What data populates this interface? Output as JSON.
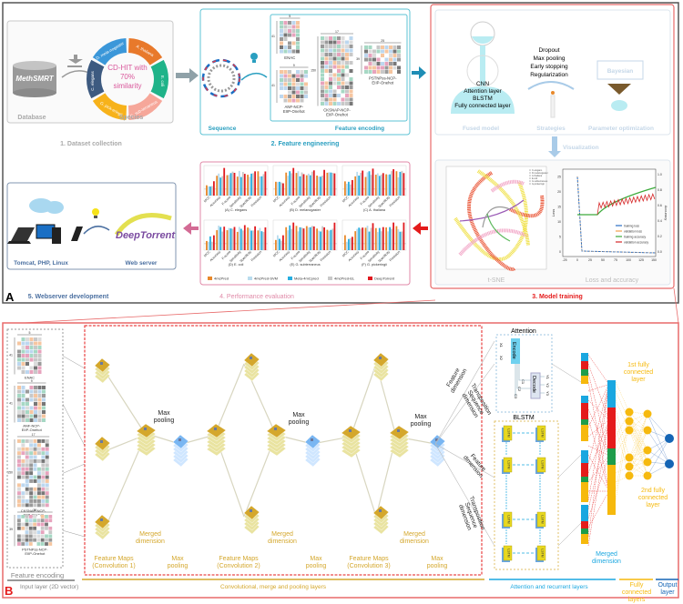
{
  "panel_a": {
    "letter": "A",
    "dataset": {
      "database_logo": "MethSMRT",
      "database_label": "Database",
      "species_label": "Species",
      "center_text": [
        "CD-HIT with",
        "70%",
        "similarity"
      ],
      "species": [
        "A. thaliana",
        "E. coli",
        "G. sub-terraneus",
        "G. pick-eringii",
        "C. elegans",
        "D. mela-nogaster"
      ],
      "species_colors": [
        "#e8792b",
        "#1fb389",
        "#f6a79a",
        "#f7b21a",
        "#3d5a80",
        "#3b97d9"
      ],
      "step_title": "1. Dataset collection"
    },
    "feature_engineering": {
      "sequence_label": "Sequence",
      "encoding_label": "Feature encoding",
      "step_title": "2. Feature engineering",
      "encodings": [
        {
          "name": "ENAC",
          "rows": "41",
          "cols": "5"
        },
        {
          "name": "ANF-NCP-EIIP-Onehot",
          "rows": "41",
          "cols": "9"
        },
        {
          "name": "CKSNAP-NCP-EIIP-Onehot",
          "rows": "150",
          "cols": "17"
        },
        {
          "name": "PSTNPss-NCP-EIIP-Onehot",
          "rows": "39",
          "cols": "25"
        }
      ]
    },
    "model_training": {
      "fused_model_layers": [
        "CNN",
        "Attention layer",
        "BLSTM",
        "Fully connected layer"
      ],
      "fused_model_label": "Fused model",
      "strategies": [
        "Dropout",
        "Max pooling",
        "Early stopping",
        "Regularization"
      ],
      "strategies_label": "Strategies",
      "bayesian_label": "Bayesian",
      "param_opt_label": "Parameter optimization",
      "visualization_label": "Visualization",
      "tsne_label": "t-SNE",
      "tsne_legend": [
        "C.elegans",
        "D.melanogaster",
        "A.thaliana",
        "E.coli",
        "G.subterraneus",
        "G.pickeringii"
      ],
      "loss_label": "Loss and accuracy",
      "loss_axis": {
        "ylabel": "Loss",
        "y2label": "Accuracy",
        "yticks": [
          "0",
          "5",
          "10",
          "15",
          "20",
          "25"
        ],
        "y2ticks": [
          "0.0",
          "0.2",
          "0.4",
          "0.6",
          "0.8",
          "1.0"
        ],
        "xticks": [
          "-25",
          "0",
          "25",
          "50",
          "75",
          "100",
          "125",
          "150"
        ]
      },
      "loss_legend": [
        "training loss",
        "validation loss",
        "training accuracy",
        "validation accuracy"
      ],
      "step_title": "3. Model training"
    },
    "performance": {
      "step_title": "4. Performance evaluation",
      "subplots": [
        "(A) C. elegans",
        "(B) D. melanogaster",
        "(C) A. thaliana",
        "(D) E. coli",
        "(E) G. subterraneus",
        "(F) G. pickeringii"
      ],
      "metrics": [
        "MCC",
        "Accuracy",
        "F-score",
        "Sensitivity",
        "Specificity",
        "Precision"
      ],
      "methods": [
        "4mcPred",
        "4mcPred-SVM",
        "Meta-4mCpred",
        "4mcPred-EL",
        "DeepTorrent"
      ],
      "method_colors": [
        "#e8892b",
        "#b9dcee",
        "#27aee0",
        "#c9c9c9",
        "#e0191f"
      ]
    },
    "webserver": {
      "stack_label": "Tomcat, PHP, Linux",
      "server_label": "Web server",
      "logo": "DeepTorrent",
      "step_title": "5. Webserver development"
    }
  },
  "panel_b": {
    "letter": "B",
    "input_label": "Feature encoding",
    "encodings": [
      {
        "name": "ENAC",
        "rows": "41",
        "cols": "5"
      },
      {
        "name": "ANF-NCP-EIIP-Onehot",
        "rows": "41",
        "cols": "9"
      },
      {
        "name": "CKSNAP-NCP-EIIP-Onehot",
        "rows": "150",
        "cols": "17"
      },
      {
        "name": "PSTNPss-NCP-EIIP-Onehot",
        "rows": "39",
        "cols": "25"
      }
    ],
    "max_pooling": "Max pooling",
    "merged_dimension": "Merged dimension",
    "feature_maps": [
      "Feature Maps (Convolution 1)",
      "Feature Maps (Convolution 2)",
      "Feature Maps (Convolution 3)"
    ],
    "feature_dimension": "Feature dimension",
    "transposition": "Transposition Sequence dimension",
    "attention_title": "Attention",
    "encode": "Encode",
    "decode": "Decode",
    "attention_x": [
      "X1",
      "X2"
    ],
    "attention_c": [
      "C1",
      "C2",
      "C3"
    ],
    "attention_y": [
      "Y1",
      "Y2",
      "Y3"
    ],
    "blstm_title": "BLSTM",
    "lstm": "LSTM",
    "fc1": "1st fully connected layer",
    "fc2": "2nd fully connected layer",
    "merged_dimension_right": "Merged dimension",
    "bottom": {
      "input_layer": "Input layer (2D vector)",
      "conv_layers": "Convolutional, merge and pooling layers",
      "attn_layers": "Attention and recurrent layers",
      "fc_layers": "Fully connected layers",
      "output_layer": "Output layer"
    },
    "colors": {
      "gold": "#d4a72c",
      "blue": "#1aa7e0",
      "red": "#e41b1b",
      "green": "#1e9c4a",
      "yellow": "#f6b90d",
      "navy": "#1565b5"
    }
  }
}
